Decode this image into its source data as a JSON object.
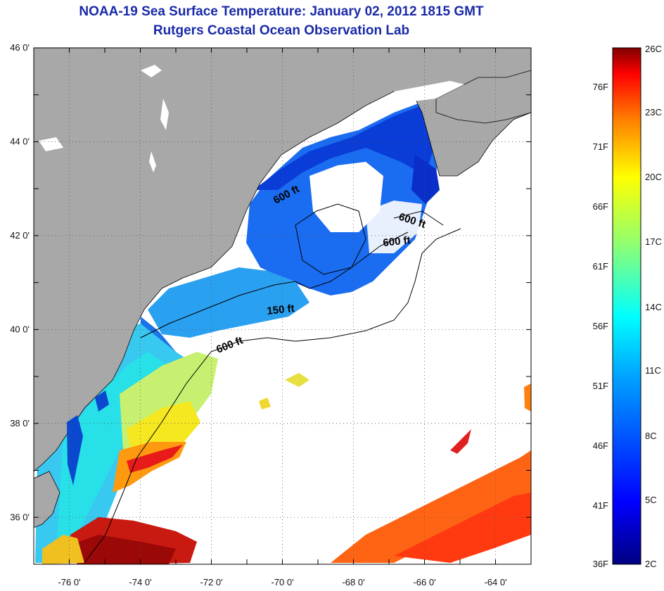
{
  "header": {
    "title": "NOAA-19 Sea Surface Temperature:  January 02, 2012 1815 GMT",
    "subtitle": "Rutgers Coastal Ocean Observation Lab"
  },
  "map": {
    "lon_range": [
      -77,
      -63
    ],
    "lat_range": [
      35,
      46
    ],
    "lat_ticks": [
      "46 0'",
      "44 0'",
      "42 0'",
      "40 0'",
      "38 0'",
      "36 0'"
    ],
    "lon_ticks": [
      "-76 0'",
      "-74 0'",
      "-72 0'",
      "-70 0'",
      "-68 0'",
      "-66 0'",
      "-64 0'"
    ],
    "depth_labels": [
      "600 ft",
      "600 ft",
      "600 ft",
      "150 ft",
      "600 ft"
    ],
    "colors": {
      "land": "#a8a8a8",
      "no_data": "#ffffff",
      "contour": "#000000"
    }
  },
  "colorbar": {
    "celsius_labels": [
      "26C",
      "23C",
      "20C",
      "17C",
      "14C",
      "11C",
      "8C",
      "5C",
      "2C"
    ],
    "fahrenheit_labels": [
      "76F",
      "71F",
      "66F",
      "61F",
      "56F",
      "51F",
      "46F",
      "41F",
      "36F"
    ],
    "stops": [
      "#800000",
      "#ff0000",
      "#ff8000",
      "#ffff00",
      "#80ff80",
      "#00ffff",
      "#0080ff",
      "#0000ff",
      "#000080"
    ]
  }
}
